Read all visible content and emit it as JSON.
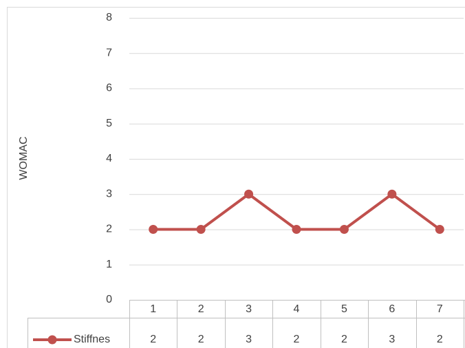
{
  "chart_data": {
    "type": "line",
    "y_label": "WOMAC",
    "categories": [
      "1",
      "2",
      "3",
      "4",
      "5",
      "6",
      "7"
    ],
    "series": [
      {
        "name": "Stiffnes",
        "color": "#c0504d",
        "values": [
          2,
          2,
          3,
          2,
          2,
          3,
          2
        ]
      }
    ],
    "ylim": [
      0,
      8
    ],
    "yticks": [
      0,
      1,
      2,
      3,
      4,
      5,
      6,
      7,
      8
    ],
    "grid": true,
    "legend": "data-table"
  }
}
